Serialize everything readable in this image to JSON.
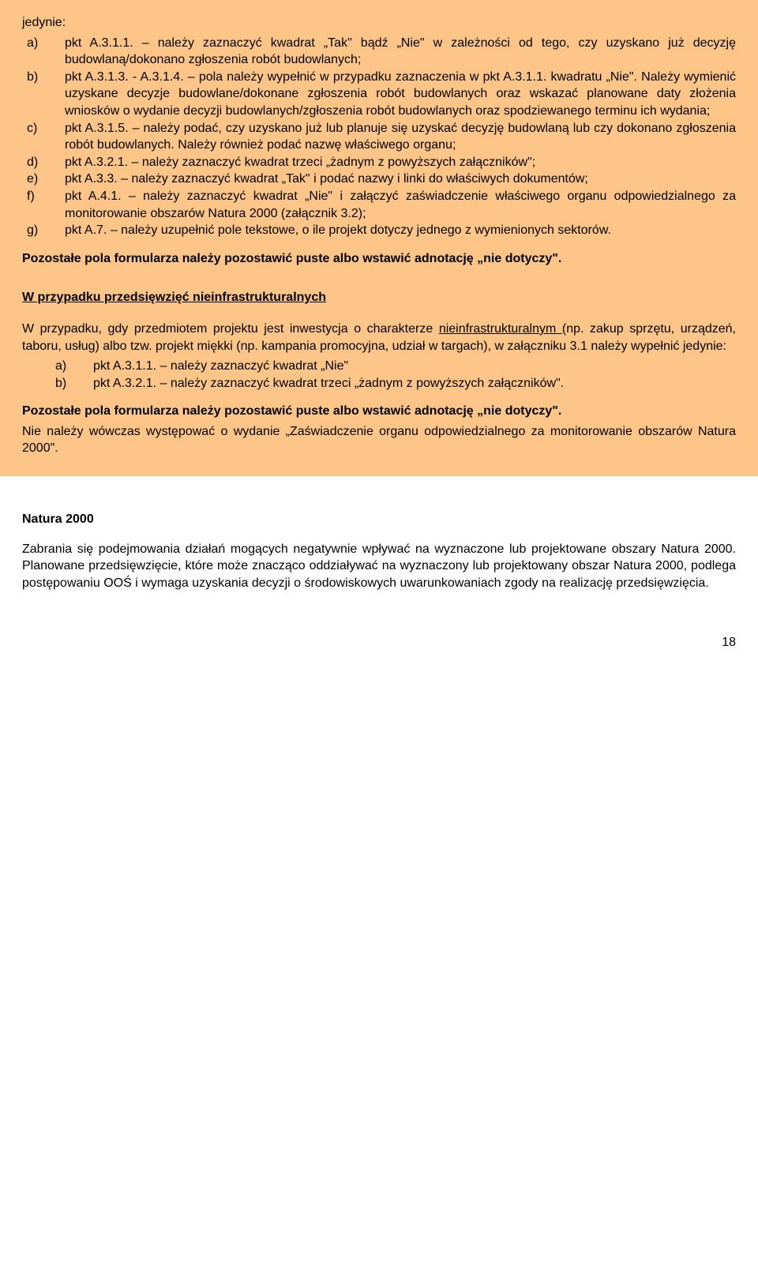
{
  "box": {
    "intro": "jedynie:",
    "items": [
      {
        "marker": "a)",
        "text": "pkt A.3.1.1. – należy zaznaczyć kwadrat „Tak\" bądź „Nie\" w zależności od tego, czy uzyskano już decyzję budowlaną/dokonano zgłoszenia robót budowlanych;"
      },
      {
        "marker": "b)",
        "text": "pkt A.3.1.3. - A.3.1.4. – pola należy wypełnić w przypadku zaznaczenia w pkt A.3.1.1. kwadratu „Nie\". Należy wymienić uzyskane decyzje budowlane/dokonane zgłoszenia robót budowlanych oraz wskazać planowane daty złożenia wniosków o wydanie decyzji budowlanych/zgłoszenia robót budowlanych oraz spodziewanego terminu ich wydania;"
      },
      {
        "marker": "c)",
        "text": "pkt A.3.1.5. – należy podać, czy uzyskano już lub planuje się uzyskać decyzję budowlaną lub czy dokonano zgłoszenia robót budowlanych. Należy również podać nazwę właściwego organu;"
      },
      {
        "marker": "d)",
        "text": "pkt A.3.2.1. – należy zaznaczyć kwadrat trzeci „żadnym z powyższych załączników\";"
      },
      {
        "marker": "e)",
        "text": "pkt A.3.3. – należy zaznaczyć kwadrat „Tak\" i podać nazwy i linki do właściwych dokumentów;"
      },
      {
        "marker": "f)",
        "text": "pkt A.4.1. – należy zaznaczyć kwadrat „Nie\" i załączyć  zaświadczenie właściwego organu odpowiedzialnego za monitorowanie obszarów Natura 2000 (załącznik 3.2);"
      },
      {
        "marker": "g)",
        "text": "pkt A.7. – należy uzupełnić pole tekstowe, o ile projekt dotyczy jednego z wymienionych sektorów."
      }
    ],
    "note1": "Pozostałe pola formularza należy pozostawić puste albo wstawić adnotację „nie dotyczy\".",
    "heading2": "W przypadku przedsięwzięć nieinfrastrukturalnych",
    "para2": "W przypadku, gdy przedmiotem projektu jest inwestycja o charakterze ",
    "para2_u": "nieinfrastrukturalnym ",
    "para2_rest": "(np. zakup sprzętu, urządzeń, taboru, usług) albo tzw. projekt miękki (np. kampania promocyjna, udział w targach), w załączniku 3.1 należy wypełnić jedynie:",
    "subitems": [
      {
        "marker": "a)",
        "text": "pkt A.3.1.1. – należy zaznaczyć kwadrat „Nie\""
      },
      {
        "marker": "b)",
        "text": "pkt A.3.2.1. – należy zaznaczyć kwadrat trzeci „żadnym z powyższych załączników\"."
      }
    ],
    "note2": "Pozostałe pola formularza należy pozostawić puste albo wstawić adnotację „nie dotyczy\".",
    "note3": "Nie należy wówczas występować o wydanie „Zaświadczenie organu odpowiedzialnego za monitorowanie obszarów Natura 2000\"."
  },
  "after": {
    "heading": "Natura 2000",
    "para": "Zabrania się podejmowania działań mogących negatywnie wpływać na wyznaczone lub projektowane obszary Natura 2000. Planowane przedsięwzięcie, które może znacząco oddziaływać na wyznaczony lub projektowany obszar Natura 2000, podlega postępowaniu OOŚ i wymaga uzyskania decyzji o środowiskowych uwarunkowaniach zgody na realizację przedsięwzięcia."
  },
  "page_number": "18"
}
